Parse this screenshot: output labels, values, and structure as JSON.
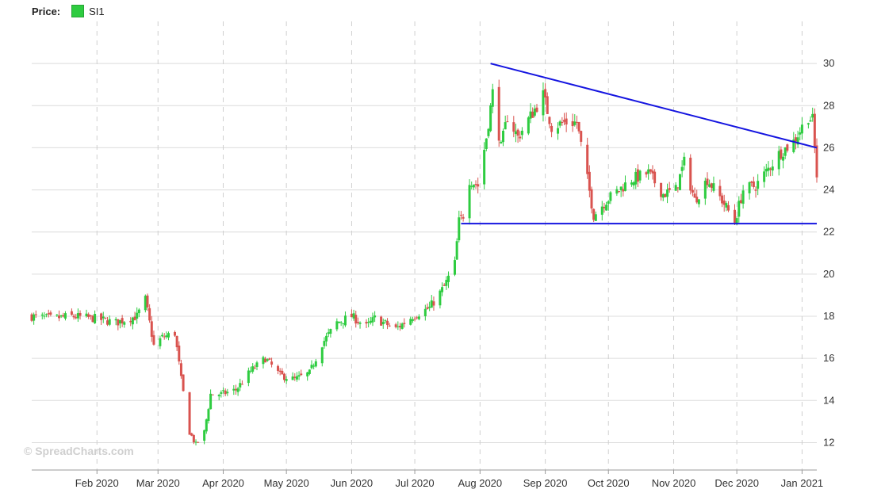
{
  "legend": {
    "label": "Price:",
    "series_name": "SI1",
    "series_color": "#2ecc40"
  },
  "watermark": "© SpreadCharts.com",
  "chart_data": {
    "type": "candlestick",
    "series": [
      {
        "name": "SI1",
        "up_color": "#2ecc40",
        "down_color": "#d9534f"
      }
    ],
    "x_range": [
      "2020-01-01",
      "2021-01-08"
    ],
    "ylim": [
      10.7,
      32
    ],
    "y_ticks": [
      12,
      14,
      16,
      18,
      20,
      22,
      24,
      26,
      28,
      30
    ],
    "x_ticks": [
      {
        "date": "2020-02-01",
        "label": "Feb 2020"
      },
      {
        "date": "2020-03-01",
        "label": "Mar 2020"
      },
      {
        "date": "2020-04-01",
        "label": "Apr 2020"
      },
      {
        "date": "2020-05-01",
        "label": "May 2020"
      },
      {
        "date": "2020-06-01",
        "label": "Jun 2020"
      },
      {
        "date": "2020-07-01",
        "label": "Jul 2020"
      },
      {
        "date": "2020-08-01",
        "label": "Aug 2020"
      },
      {
        "date": "2020-09-01",
        "label": "Sep 2020"
      },
      {
        "date": "2020-10-01",
        "label": "Oct 2020"
      },
      {
        "date": "2020-11-01",
        "label": "Nov 2020"
      },
      {
        "date": "2020-12-01",
        "label": "Dec 2020"
      },
      {
        "date": "2021-01-01",
        "label": "Jan 2021"
      }
    ],
    "grid": true,
    "close_path": [
      [
        "2020-01-01",
        18.0
      ],
      [
        "2020-01-10",
        17.9
      ],
      [
        "2020-01-20",
        18.0
      ],
      [
        "2020-01-31",
        17.9
      ],
      [
        "2020-02-10",
        17.7
      ],
      [
        "2020-02-20",
        18.0
      ],
      [
        "2020-02-24",
        18.8
      ],
      [
        "2020-02-28",
        16.6
      ],
      [
        "2020-03-03",
        17.0
      ],
      [
        "2020-03-09",
        17.2
      ],
      [
        "2020-03-12",
        15.0
      ],
      [
        "2020-03-16",
        12.5
      ],
      [
        "2020-03-19",
        11.9
      ],
      [
        "2020-03-23",
        12.5
      ],
      [
        "2020-03-26",
        14.3
      ],
      [
        "2020-03-31",
        14.3
      ],
      [
        "2020-04-07",
        14.5
      ],
      [
        "2020-04-14",
        15.4
      ],
      [
        "2020-04-21",
        16.0
      ],
      [
        "2020-04-28",
        15.2
      ],
      [
        "2020-05-05",
        15.0
      ],
      [
        "2020-05-12",
        15.3
      ],
      [
        "2020-05-18",
        16.7
      ],
      [
        "2020-05-25",
        17.7
      ],
      [
        "2020-06-01",
        18.0
      ],
      [
        "2020-06-08",
        17.5
      ],
      [
        "2020-06-12",
        17.9
      ],
      [
        "2020-06-22",
        17.4
      ],
      [
        "2020-06-30",
        18.0
      ],
      [
        "2020-07-08",
        18.4
      ],
      [
        "2020-07-15",
        19.4
      ],
      [
        "2020-07-20",
        20.5
      ],
      [
        "2020-07-22",
        22.5
      ],
      [
        "2020-07-24",
        22.8
      ],
      [
        "2020-07-27",
        24.5
      ],
      [
        "2020-07-31",
        24.2
      ],
      [
        "2020-08-04",
        26.5
      ],
      [
        "2020-08-07",
        28.6
      ],
      [
        "2020-08-11",
        26.0
      ],
      [
        "2020-08-14",
        27.5
      ],
      [
        "2020-08-19",
        26.5
      ],
      [
        "2020-08-25",
        27.5
      ],
      [
        "2020-08-31",
        28.5
      ],
      [
        "2020-09-04",
        27.0
      ],
      [
        "2020-09-10",
        27.2
      ],
      [
        "2020-09-16",
        27.2
      ],
      [
        "2020-09-21",
        24.5
      ],
      [
        "2020-09-24",
        22.8
      ],
      [
        "2020-09-30",
        23.5
      ],
      [
        "2020-10-06",
        24.0
      ],
      [
        "2020-10-12",
        24.5
      ],
      [
        "2020-10-20",
        24.8
      ],
      [
        "2020-10-27",
        23.8
      ],
      [
        "2020-11-02",
        24.0
      ],
      [
        "2020-11-06",
        25.3
      ],
      [
        "2020-11-11",
        23.5
      ],
      [
        "2020-11-17",
        24.5
      ],
      [
        "2020-11-24",
        23.5
      ],
      [
        "2020-11-30",
        22.5
      ],
      [
        "2020-12-04",
        24.0
      ],
      [
        "2020-12-10",
        24.2
      ],
      [
        "2020-12-16",
        25.0
      ],
      [
        "2020-12-21",
        25.7
      ],
      [
        "2020-12-28",
        26.3
      ],
      [
        "2021-01-04",
        27.5
      ],
      [
        "2021-01-06",
        27.3
      ],
      [
        "2021-01-08",
        24.7
      ]
    ],
    "trendlines": [
      {
        "color": "#1515e0",
        "from": [
          "2020-08-06",
          30.0
        ],
        "to": [
          "2021-01-08",
          26.0
        ]
      },
      {
        "color": "#1515e0",
        "from": [
          "2020-07-23",
          22.4
        ],
        "to": [
          "2021-01-08",
          22.4
        ]
      }
    ]
  }
}
